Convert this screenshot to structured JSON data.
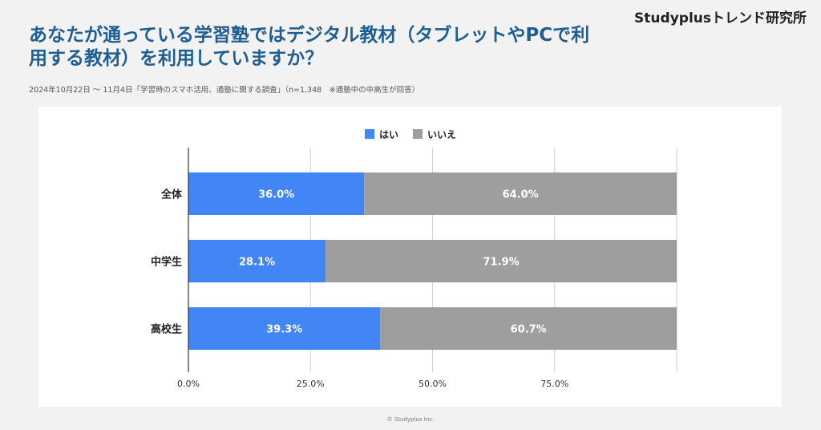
{
  "header": {
    "brand": "Studyplusトレンド研究所",
    "title": "あなたが通っている学習塾ではデジタル教材（タブレットやPCで利用する教材）を利用していますか？",
    "subtitle": "2024年10月22日 〜 11月4日「学習時のスマホ活用、通塾に関する調査」（n=1,348　※通塾中の中高生が回答）"
  },
  "footer": {
    "copyright": "© Studyplus Inc."
  },
  "colors": {
    "yes": "#4285f4",
    "no": "#9e9e9e",
    "title": "#1f5e92"
  },
  "legend": [
    {
      "label": "はい",
      "color": "#4285f4"
    },
    {
      "label": "いいえ",
      "color": "#9e9e9e"
    }
  ],
  "chart_data": {
    "type": "bar",
    "orientation": "horizontal",
    "stacked": true,
    "categories": [
      "全体",
      "中学生",
      "高校生"
    ],
    "series": [
      {
        "name": "はい",
        "values": [
          36.0,
          28.1,
          39.3
        ],
        "labels": [
          "36.0%",
          "28.1%",
          "39.3%"
        ]
      },
      {
        "name": "いいえ",
        "values": [
          64.0,
          71.9,
          60.7
        ],
        "labels": [
          "64.0%",
          "71.9%",
          "60.7%"
        ]
      }
    ],
    "xlim": [
      0,
      100
    ],
    "xticks": [
      0,
      25,
      50,
      75
    ],
    "xtick_labels": [
      "0.0%",
      "25.0%",
      "50.0%",
      "75.0%"
    ],
    "grid": true,
    "legend_position": "top"
  }
}
